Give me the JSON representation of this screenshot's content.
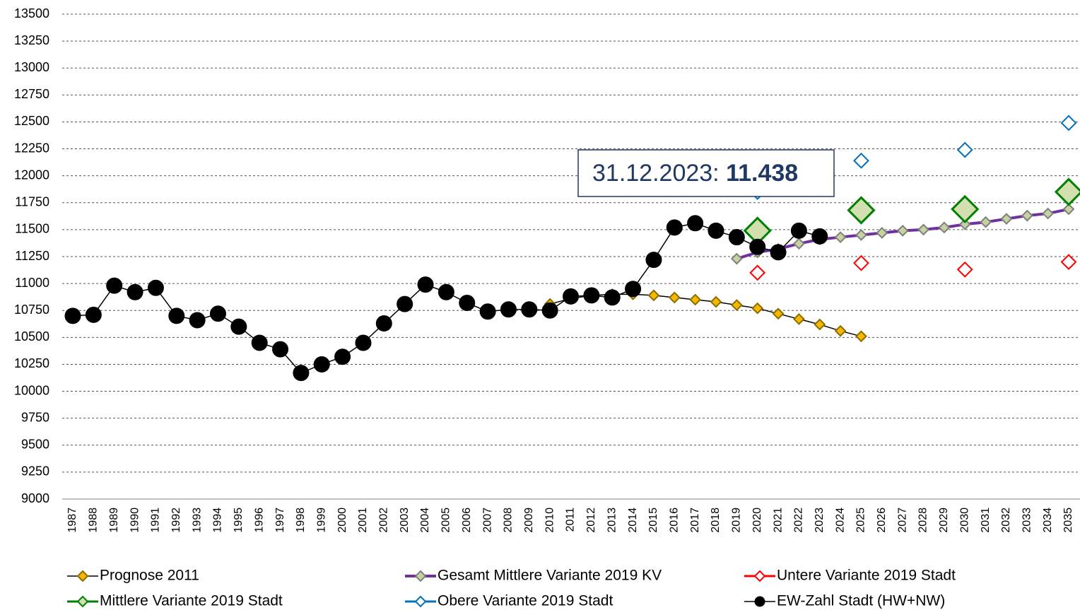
{
  "chart_data": {
    "type": "line",
    "categories": [
      "1987",
      "1988",
      "1989",
      "1990",
      "1991",
      "1992",
      "1993",
      "1994",
      "1995",
      "1996",
      "1997",
      "1998",
      "1999",
      "2000",
      "2001",
      "2002",
      "2003",
      "2004",
      "2005",
      "2006",
      "2007",
      "2008",
      "2009",
      "2010",
      "2011",
      "2012",
      "2013",
      "2014",
      "2015",
      "2016",
      "2017",
      "2018",
      "2019",
      "2020",
      "2021",
      "2022",
      "2023",
      "2024",
      "2025",
      "2026",
      "2027",
      "2028",
      "2029",
      "2030",
      "2031",
      "2032",
      "2033",
      "2034",
      "2035"
    ],
    "ylim": [
      9000,
      13500
    ],
    "yticks": [
      9000,
      9250,
      9500,
      9750,
      10000,
      10250,
      10500,
      10750,
      11000,
      11250,
      11500,
      11750,
      12000,
      12250,
      12500,
      12750,
      13000,
      13250,
      13500
    ],
    "grid": true,
    "legend": "bottom",
    "series": [
      {
        "name": "Prognose 2011",
        "color": "#000000",
        "marker": "diamond",
        "marker_fill": "#f5b800",
        "marker_stroke": "#8a6d00",
        "values": [
          null,
          null,
          null,
          null,
          null,
          null,
          null,
          null,
          null,
          null,
          null,
          null,
          null,
          null,
          null,
          null,
          null,
          null,
          null,
          null,
          null,
          null,
          null,
          10810,
          10860,
          10890,
          10900,
          10900,
          10890,
          10870,
          10850,
          10830,
          10800,
          10770,
          10720,
          10670,
          10620,
          10560,
          10510,
          null,
          null,
          null,
          null,
          null,
          null,
          null,
          null,
          null,
          null
        ]
      },
      {
        "name": "Gesamt Mittlere Variante 2019 KV",
        "color": "#7030a0",
        "marker": "diamond",
        "marker_fill": "#c6d3a0",
        "marker_stroke": "#7f7f7f",
        "values": [
          null,
          null,
          null,
          null,
          null,
          null,
          null,
          null,
          null,
          null,
          null,
          null,
          null,
          null,
          null,
          null,
          null,
          null,
          null,
          null,
          null,
          null,
          null,
          null,
          null,
          null,
          null,
          null,
          null,
          null,
          null,
          null,
          11230,
          11290,
          11320,
          11370,
          11410,
          11430,
          11450,
          11470,
          11490,
          11500,
          11520,
          11550,
          11570,
          11600,
          11630,
          11650,
          11690
        ]
      },
      {
        "name": "Untere Variante 2019 Stadt",
        "color": "#ff0000",
        "marker": "diamond",
        "marker_fill": "#ffffff",
        "marker_stroke": "#ff0000",
        "values": [
          null,
          null,
          null,
          null,
          null,
          null,
          null,
          null,
          null,
          null,
          null,
          null,
          null,
          null,
          null,
          null,
          null,
          null,
          null,
          null,
          null,
          null,
          null,
          null,
          null,
          null,
          null,
          null,
          null,
          null,
          null,
          null,
          null,
          11100,
          null,
          null,
          null,
          null,
          11190,
          null,
          null,
          null,
          null,
          11130,
          null,
          null,
          null,
          null,
          11200
        ]
      },
      {
        "name": "Mittlere Variante 2019 Stadt",
        "color": "#008000",
        "marker": "diamond",
        "marker_fill": "#d2e0b0",
        "marker_stroke": "#008000",
        "values": [
          null,
          null,
          null,
          null,
          null,
          null,
          null,
          null,
          null,
          null,
          null,
          null,
          null,
          null,
          null,
          null,
          null,
          null,
          null,
          null,
          null,
          null,
          null,
          null,
          null,
          null,
          null,
          null,
          null,
          null,
          null,
          null,
          null,
          11490,
          null,
          null,
          null,
          null,
          11680,
          null,
          null,
          null,
          null,
          11690,
          null,
          null,
          null,
          null,
          11850
        ]
      },
      {
        "name": "Obere Variante 2019 Stadt",
        "color": "#0070c0",
        "marker": "diamond",
        "marker_fill": "#ffffff",
        "marker_stroke": "#0070c0",
        "values": [
          null,
          null,
          null,
          null,
          null,
          null,
          null,
          null,
          null,
          null,
          null,
          null,
          null,
          null,
          null,
          null,
          null,
          null,
          null,
          null,
          null,
          null,
          null,
          null,
          null,
          null,
          null,
          null,
          null,
          null,
          null,
          null,
          null,
          11850,
          null,
          null,
          null,
          null,
          12140,
          null,
          null,
          null,
          null,
          12240,
          null,
          null,
          null,
          null,
          12490
        ]
      },
      {
        "name": "EW-Zahl Stadt (HW+NW)",
        "color": "#000000",
        "marker": "circle",
        "marker_fill": "#000000",
        "marker_stroke": "#000000",
        "values": [
          10700,
          10710,
          10980,
          10920,
          10960,
          10700,
          10660,
          10720,
          10600,
          10450,
          10390,
          10170,
          10250,
          10320,
          10450,
          10630,
          10810,
          10990,
          10920,
          10820,
          10740,
          10760,
          10760,
          10750,
          10880,
          10890,
          10870,
          10950,
          11220,
          11520,
          11560,
          11490,
          11430,
          11340,
          11290,
          11490,
          11438,
          null,
          null,
          null,
          null,
          null,
          null,
          null,
          null,
          null,
          null,
          null,
          null
        ]
      }
    ],
    "annotation": {
      "label": "31.12.2023:",
      "value_text": "11.438"
    }
  }
}
